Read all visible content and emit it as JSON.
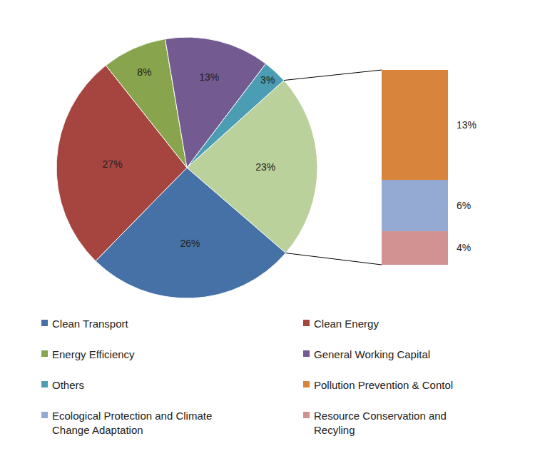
{
  "chart_data": [
    {
      "type": "pie",
      "categories": [
        null,
        "Clean Transport",
        "Clean Energy",
        "Energy Efficiency",
        "General Working Capital",
        "Others"
      ],
      "values": [
        23,
        26,
        27,
        8,
        13,
        3
      ],
      "value_labels": [
        "23%",
        "26%",
        "27%",
        "8%",
        "13%",
        "3%"
      ],
      "colors": [
        "#bbd19b",
        "#4571a6",
        "#a6443f",
        "#88a44c",
        "#735a91",
        "#4a9db3"
      ],
      "data_labels": true
    },
    {
      "type": "bar",
      "stacked": true,
      "categories": [
        null
      ],
      "series": [
        {
          "name": "Pollution Prevention & Contol",
          "color": "#d9843d",
          "values": [
            13
          ],
          "value_labels": [
            "13%"
          ]
        },
        {
          "name": "Ecological Protection and Climate Change Adaptation",
          "color": "#94aad2",
          "values": [
            6
          ],
          "value_labels": [
            "6%"
          ]
        },
        {
          "name": "Resource Conservation and Recyling",
          "color": "#d29292",
          "values": [
            4
          ],
          "value_labels": [
            "4%"
          ]
        }
      ],
      "ylim": [
        0,
        23
      ],
      "tick_labels": false,
      "data_labels": true
    }
  ]
}
